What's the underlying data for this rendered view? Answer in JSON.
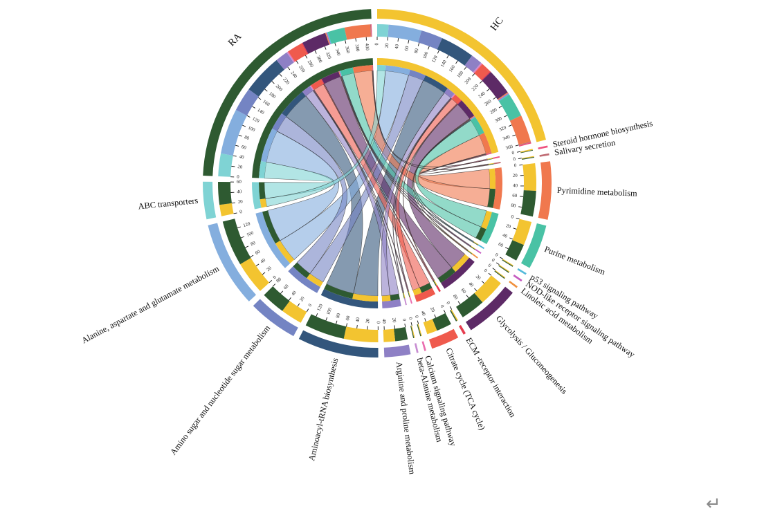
{
  "figure": {
    "background": "#ffffff",
    "description": "Circos chord diagram of differential KEGG pathways between RA and HC groups"
  },
  "footer": {
    "return_symbol": "↵"
  },
  "chart_data": {
    "type": "chord",
    "direction": "clockwise_from_top",
    "grid": false,
    "legend_position": "none",
    "axis": {
      "tick_step": 20,
      "label_step": 20
    },
    "groups": [
      {
        "id": "HC",
        "label": "HC",
        "color": "#f3c430",
        "total": 363,
        "axis_max": 360
      },
      {
        "id": "RA",
        "label": "RA",
        "color": "#2e5a31",
        "total": 411,
        "axis_max": 400
      }
    ],
    "sector_order": [
      "HC",
      "steroid",
      "salivary",
      "pyrimidine",
      "purine",
      "p53",
      "nod",
      "linoleic",
      "glycolysis",
      "ecm",
      "citrate",
      "calcium",
      "beta_alanine",
      "arginine",
      "aminoacyl",
      "amino_sugar",
      "alanine",
      "abc",
      "RA"
    ],
    "pathways": [
      {
        "id": "steroid",
        "label": "Steroid hormone biosynthesis",
        "color": "#ee4f7e",
        "HC": 2,
        "RA": 1,
        "first": "HC"
      },
      {
        "id": "salivary",
        "label": "Salivary secretion",
        "color": "#bf6a72",
        "HC": 1.5,
        "RA": 1.5,
        "first": "HC"
      },
      {
        "id": "pyrimidine",
        "label": "Pyrimidine metabolism",
        "color": "#f0784e",
        "HC": 48,
        "RA": 45,
        "first": "HC"
      },
      {
        "id": "purine",
        "label": "Purine metabolism",
        "color": "#49c2a5",
        "HC": 42,
        "RA": 30,
        "first": "HC"
      },
      {
        "id": "p53",
        "label": "p53 signaling pathway",
        "color": "#54bada",
        "HC": 1.5,
        "RA": 1.5,
        "first": "HC"
      },
      {
        "id": "nod",
        "label": "NOD-like receptor signaling pathway",
        "color": "#c45ac0",
        "HC": 1.5,
        "RA": 1.5,
        "first": "HC"
      },
      {
        "id": "linoleic",
        "label": "Linoleic acid metabolism",
        "color": "#f0913f",
        "HC": 1.5,
        "RA": 1.5,
        "first": "HC"
      },
      {
        "id": "glycolysis",
        "label": "Glycolysis / Gluconeogenesis",
        "color": "#5d2a66",
        "HC": 46,
        "RA": 43,
        "first": "HC"
      },
      {
        "id": "ecm",
        "label": "ECM -receptor interaction",
        "color": "#e63b4d",
        "HC": 2,
        "RA": 2,
        "first": "HC"
      },
      {
        "id": "citrate",
        "label": "Citrate cycle (TCA cycle)",
        "color": "#ef5a4d",
        "HC": 18,
        "RA": 27,
        "first": "RA"
      },
      {
        "id": "calcium",
        "label": "Calcium signaling pathway",
        "color": "#ea6daf",
        "HC": 1.5,
        "RA": 1.5,
        "first": "HC"
      },
      {
        "id": "beta_alanine",
        "label": "beta-Alanine metabolism",
        "color": "#c78cd1",
        "HC": 1.5,
        "RA": 1.5,
        "first": "HC"
      },
      {
        "id": "arginine",
        "label": "Arginine and proline metabolism",
        "color": "#8e80c5",
        "HC": 20,
        "RA": 22,
        "first": "RA"
      },
      {
        "id": "aminoacyl",
        "label": "Aminoacyl-tRNA biosynthesis",
        "color": "#33567c",
        "HC": 60,
        "RA": 70,
        "first": "HC"
      },
      {
        "id": "amino_sugar",
        "label": "Amino sugar and nucleotide sugar metabolism",
        "color": "#7484c3",
        "HC": 38,
        "RA": 42,
        "first": "HC"
      },
      {
        "id": "alanine",
        "label": "Alanine, aspartate and glutamate metabolism",
        "color": "#84aede",
        "HC": 58,
        "RA": 80,
        "first": "HC"
      },
      {
        "id": "abc",
        "label": "ABC transporters",
        "color": "#7fd3d4",
        "HC": 20,
        "RA": 40,
        "first": "HC"
      }
    ]
  }
}
